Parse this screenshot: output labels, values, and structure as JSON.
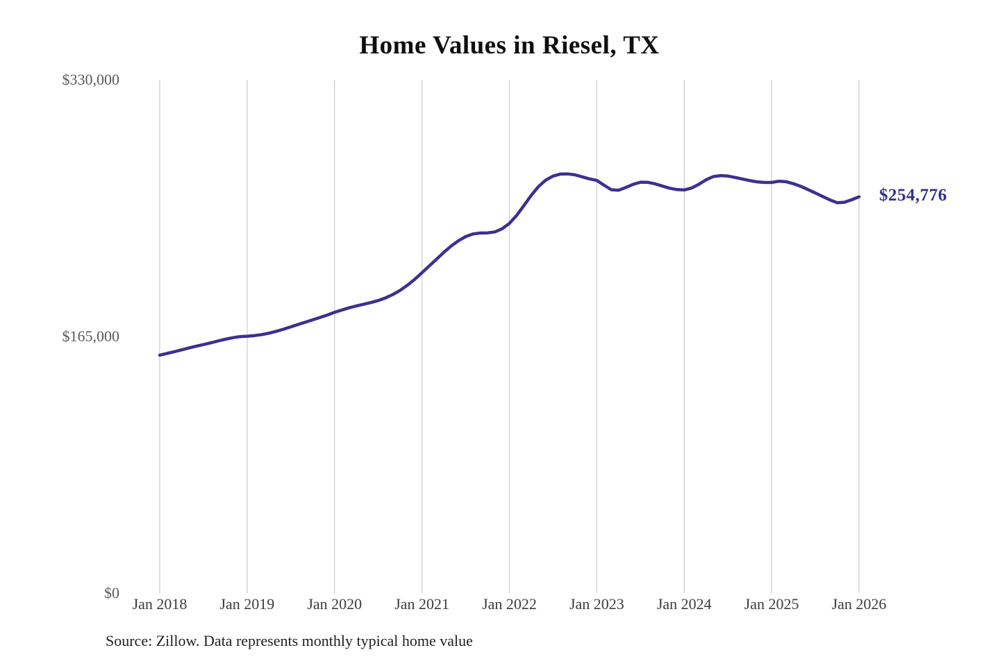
{
  "page": {
    "source_note": "Source: Zillow. Data represents monthly typical home value"
  },
  "chart_data": {
    "type": "line",
    "title": "Home Values in Riesel, TX",
    "x_tick_labels": [
      "Jan 2018",
      "Jan 2019",
      "Jan 2020",
      "Jan 2021",
      "Jan 2022",
      "Jan 2023",
      "Jan 2024",
      "Jan 2025",
      "Jan 2026"
    ],
    "y_ticks": [
      {
        "label": "$330,000",
        "value": 330000
      },
      {
        "label": "$165,000",
        "value": 165000
      },
      {
        "label": "$0",
        "value": 0
      }
    ],
    "ylim": [
      0,
      330000
    ],
    "x_range_start": "Jan 2018",
    "x_range_end": "Jan 2026",
    "interval": "monthly",
    "grid": "vertical",
    "legend": "none",
    "line_color": "#3a3190",
    "gridline_color": "#cfcfcf",
    "series": [
      {
        "name": "Monthly typical home value",
        "values": [
          153000,
          154100,
          155200,
          156400,
          157600,
          158700,
          159800,
          160900,
          162100,
          163200,
          164200,
          164900,
          165200,
          165600,
          166200,
          167100,
          168300,
          169700,
          171200,
          172700,
          174200,
          175700,
          177200,
          178800,
          180500,
          182000,
          183400,
          184600,
          185700,
          186800,
          188100,
          189800,
          192000,
          194600,
          197900,
          201700,
          206000,
          210300,
          214700,
          219100,
          223100,
          226500,
          229200,
          230900,
          231500,
          231600,
          232200,
          234200,
          237700,
          242800,
          249200,
          255700,
          261400,
          265500,
          268100,
          269400,
          269500,
          268900,
          267600,
          266300,
          265300,
          262200,
          259300,
          259000,
          260800,
          262800,
          264200,
          264100,
          263100,
          261700,
          260300,
          259400,
          259200,
          260400,
          262800,
          265700,
          267800,
          268400,
          268100,
          267200,
          266200,
          265200,
          264400,
          264000,
          264000,
          264800,
          264500,
          263200,
          261500,
          259400,
          257200,
          255000,
          252800,
          251000,
          251300,
          252900,
          254776
        ]
      }
    ],
    "end_annotation": {
      "label": "$254,776",
      "value": 254776,
      "color": "#30308a"
    }
  }
}
